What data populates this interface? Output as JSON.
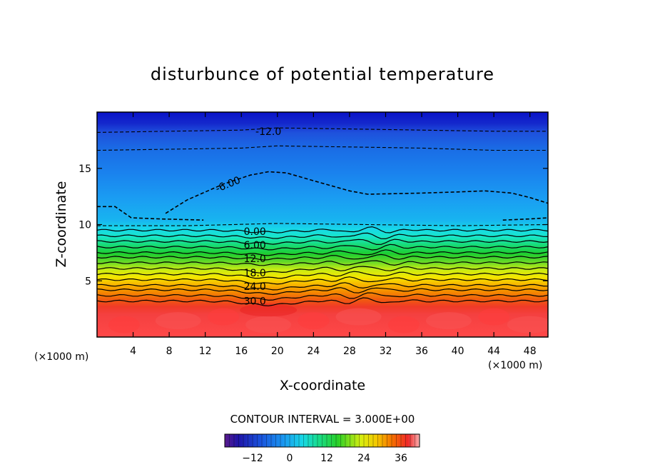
{
  "chart_data": {
    "type": "heatmap",
    "title": "disturbunce of potential temperature",
    "xlabel": "X-coordinate",
    "ylabel": "Z-coordinate",
    "x_unit_left": "(×1000 m)",
    "x_unit_right": "(×1000 m)",
    "xlim": [
      0,
      50
    ],
    "ylim": [
      0,
      20
    ],
    "x_ticks": [
      4,
      8,
      12,
      16,
      20,
      24,
      28,
      32,
      36,
      40,
      44,
      48
    ],
    "y_ticks": [
      5,
      10,
      15
    ],
    "contour_interval_text": "CONTOUR INTERVAL = 3.000E+00",
    "contour_interval": 3.0,
    "contour_labels": [
      {
        "text": "-12.0",
        "value": -12,
        "x": 19,
        "z": 18.3
      },
      {
        "text": "-6.00",
        "value": -6,
        "x": 14.5,
        "z": 13.6
      },
      {
        "text": "0.00",
        "value": 0,
        "x": 17.5,
        "z": 9.4
      },
      {
        "text": "6.00",
        "value": 6,
        "x": 17.5,
        "z": 8.2
      },
      {
        "text": "12.0",
        "value": 12,
        "x": 17.5,
        "z": 7.0
      },
      {
        "text": "18.0",
        "value": 18,
        "x": 17.5,
        "z": 5.7
      },
      {
        "text": "24.0",
        "value": 24,
        "x": 17.5,
        "z": 4.5
      },
      {
        "text": "30.0",
        "value": 30,
        "x": 17.5,
        "z": 3.2
      }
    ],
    "negative_contours": [
      {
        "value": -12,
        "points": [
          [
            0,
            18.2
          ],
          [
            8,
            18.3
          ],
          [
            16,
            18.4
          ],
          [
            20,
            18.6
          ],
          [
            28,
            18.5
          ],
          [
            36,
            18.4
          ],
          [
            44,
            18.3
          ],
          [
            50,
            18.3
          ]
        ]
      },
      {
        "value": -9,
        "points": [
          [
            0,
            16.6
          ],
          [
            8,
            16.7
          ],
          [
            16,
            16.8
          ],
          [
            20,
            17.0
          ],
          [
            28,
            16.9
          ],
          [
            36,
            16.8
          ],
          [
            44,
            16.6
          ],
          [
            50,
            16.6
          ]
        ]
      },
      {
        "value": -6,
        "points": [
          [
            0,
            11.6
          ],
          [
            2,
            11.6
          ],
          [
            3.8,
            10.6
          ],
          [
            7,
            10.5
          ],
          [
            11.8,
            10.4
          ]
        ]
      },
      {
        "value": -6,
        "points": [
          [
            7.6,
            11.0
          ],
          [
            10,
            12.2
          ],
          [
            14,
            13.6
          ],
          [
            17,
            14.4
          ],
          [
            19,
            14.7
          ],
          [
            21,
            14.6
          ],
          [
            24,
            13.9
          ],
          [
            28,
            13.0
          ],
          [
            30,
            12.7
          ],
          [
            36,
            12.8
          ],
          [
            40,
            12.9
          ],
          [
            43,
            13.0
          ],
          [
            46,
            12.8
          ],
          [
            48,
            12.4
          ],
          [
            50,
            11.9
          ]
        ]
      },
      {
        "value": -6,
        "points": [
          [
            45,
            10.4
          ],
          [
            48,
            10.5
          ],
          [
            50,
            10.6
          ]
        ]
      },
      {
        "value": -3,
        "points": [
          [
            0,
            9.9
          ],
          [
            10,
            9.9
          ],
          [
            20,
            10.1
          ],
          [
            30,
            10.0
          ],
          [
            40,
            9.9
          ],
          [
            50,
            10.0
          ]
        ]
      }
    ],
    "positive_contour_levels_z": [
      9.5,
      9.0,
      8.5,
      8.0,
      7.5,
      7.1,
      6.6,
      6.1,
      5.6,
      5.1,
      4.6,
      4.2,
      3.7,
      3.2
    ],
    "colorbar_ticks": [
      -12,
      0,
      12,
      24,
      36
    ],
    "colorbar_range": [
      -21,
      42
    ],
    "colors": {
      "deep_blue": "#1428cc",
      "mid_blue": "#1a78ea",
      "light_blue": "#18b0f2",
      "cyan": "#18e6e6",
      "green": "#18d24a",
      "yellow": "#f0f000",
      "orange": "#f57a00",
      "red": "#f03030",
      "surface_red": "#ff4040"
    }
  }
}
